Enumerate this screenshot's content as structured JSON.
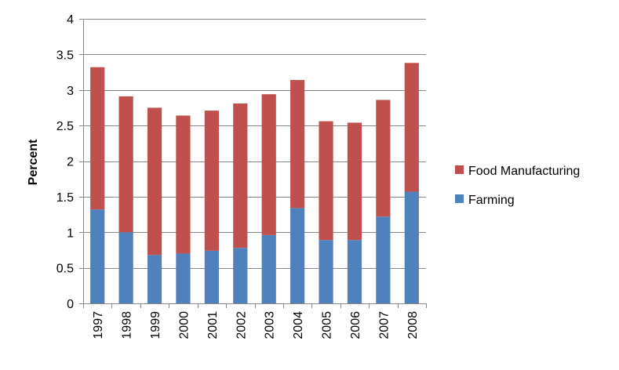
{
  "chart_data": {
    "type": "bar",
    "stacked": true,
    "title": "",
    "xlabel": "",
    "ylabel": "Percent",
    "ylim": [
      0,
      4
    ],
    "yticks": [
      0,
      0.5,
      1,
      1.5,
      2,
      2.5,
      3,
      3.5,
      4
    ],
    "ytick_labels": [
      "0",
      "0.5",
      "1",
      "1.5",
      "2",
      "2.5",
      "3",
      "3.5",
      "4"
    ],
    "categories": [
      "1997",
      "1998",
      "1999",
      "2000",
      "2001",
      "2002",
      "2003",
      "2004",
      "2005",
      "2006",
      "2007",
      "2008"
    ],
    "series": [
      {
        "name": "Farming",
        "color": "#4f81bd",
        "values": [
          1.32,
          1.0,
          0.68,
          0.7,
          0.74,
          0.78,
          0.96,
          1.34,
          0.89,
          0.89,
          1.22,
          1.57
        ]
      },
      {
        "name": "Food Manufacturing",
        "color": "#c0504d",
        "values": [
          2.0,
          1.91,
          2.07,
          1.94,
          1.97,
          2.03,
          1.98,
          1.8,
          1.67,
          1.65,
          1.64,
          1.81
        ]
      }
    ],
    "grid": true,
    "legend_position": "right",
    "legend_order": [
      "Food Manufacturing",
      "Farming"
    ]
  }
}
